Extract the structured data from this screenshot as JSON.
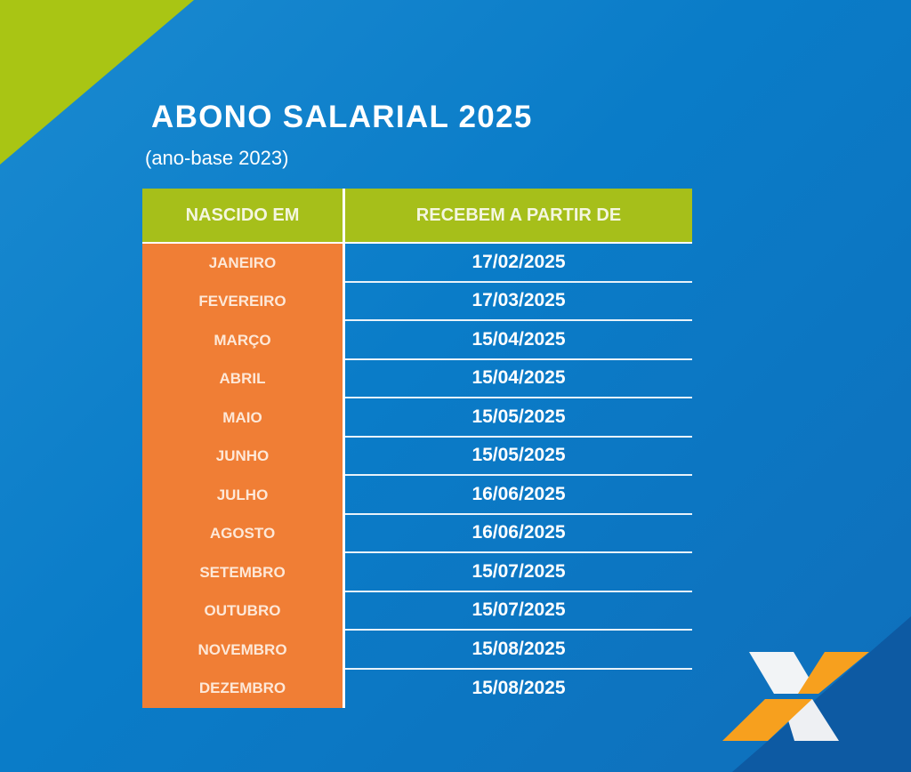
{
  "title": "ABONO SALARIAL 2025",
  "subtitle": "(ano-base 2023)",
  "table": {
    "headers": [
      "NASCIDO EM",
      "RECEBEM A PARTIR DE"
    ],
    "rows": [
      {
        "month": "JANEIRO",
        "date": "17/02/2025"
      },
      {
        "month": "FEVEREIRO",
        "date": "17/03/2025"
      },
      {
        "month": "MARÇO",
        "date": "15/04/2025"
      },
      {
        "month": "ABRIL",
        "date": "15/04/2025"
      },
      {
        "month": "MAIO",
        "date": "15/05/2025"
      },
      {
        "month": "JUNHO",
        "date": "15/05/2025"
      },
      {
        "month": "JULHO",
        "date": "16/06/2025"
      },
      {
        "month": "AGOSTO",
        "date": "16/06/2025"
      },
      {
        "month": "SETEMBRO",
        "date": "15/07/2025"
      },
      {
        "month": "OUTUBRO",
        "date": "15/07/2025"
      },
      {
        "month": "NOVEMBRO",
        "date": "15/08/2025"
      },
      {
        "month": "DEZEMBRO",
        "date": "15/08/2025"
      }
    ]
  },
  "colors": {
    "header_green": "#a6bf1a",
    "month_orange": "#f07e35",
    "background_blue": "#0a7cc8",
    "logo_orange": "#f7a01e"
  },
  "logo": {
    "icon": "caixa-x-logo"
  }
}
